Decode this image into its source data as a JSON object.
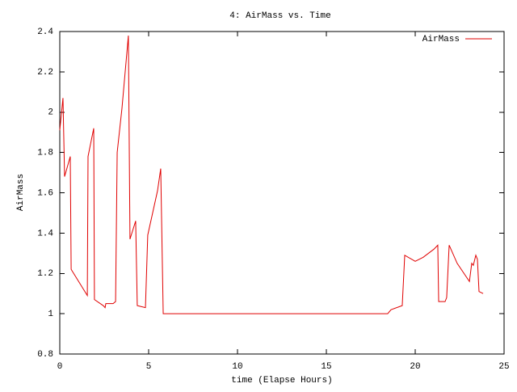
{
  "chart_data": {
    "type": "line",
    "title": "4: AirMass vs. Time",
    "xlabel": "time (Elapse Hours)",
    "ylabel": "AirMass",
    "legend": "upper right",
    "grid": false,
    "xlim": [
      0,
      25
    ],
    "xticks": [
      0,
      5,
      10,
      15,
      20,
      25
    ],
    "ylim": [
      0.8,
      2.4
    ],
    "yticks": [
      0.8,
      1,
      1.2,
      1.4,
      1.6,
      1.8,
      2,
      2.2,
      2.4
    ],
    "series": [
      {
        "name": "AirMass",
        "color": "#e00000",
        "x": [
          0,
          0.18,
          0.27,
          0.59,
          0.64,
          1.55,
          1.59,
          1.91,
          1.95,
          2.45,
          2.55,
          2.59,
          3.0,
          3.14,
          3.23,
          3.5,
          3.86,
          3.95,
          4.27,
          4.36,
          4.82,
          4.95,
          5.5,
          5.68,
          5.82,
          18.45,
          18.64,
          19.27,
          19.41,
          20,
          20.45,
          21.05,
          21.27,
          21.32,
          21.68,
          21.77,
          21.91,
          22.36,
          23.05,
          23.18,
          23.27,
          23.41,
          23.5,
          23.59,
          23.82
        ],
        "values": [
          1.91,
          2.07,
          1.68,
          1.78,
          1.22,
          1.09,
          1.78,
          1.92,
          1.07,
          1.04,
          1.03,
          1.05,
          1.05,
          1.06,
          1.8,
          2.02,
          2.38,
          1.37,
          1.46,
          1.04,
          1.03,
          1.39,
          1.61,
          1.72,
          1.0,
          1.0,
          1.02,
          1.04,
          1.29,
          1.26,
          1.28,
          1.32,
          1.34,
          1.06,
          1.06,
          1.08,
          1.34,
          1.25,
          1.16,
          1.25,
          1.24,
          1.29,
          1.27,
          1.11,
          1.1
        ]
      }
    ]
  }
}
